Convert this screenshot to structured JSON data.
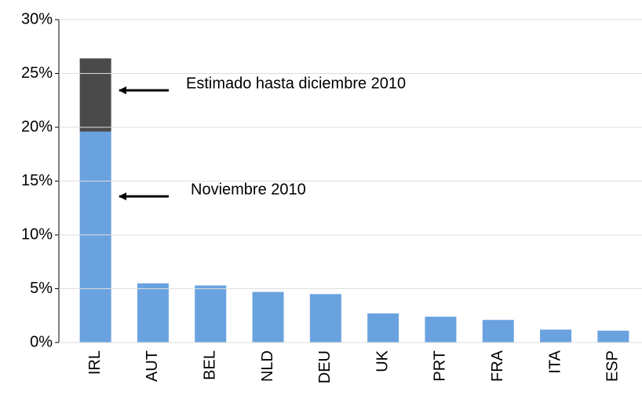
{
  "chart_data": {
    "type": "bar",
    "stacked": true,
    "categories": [
      "IRL",
      "AUT",
      "BEL",
      "NLD",
      "DEU",
      "UK",
      "PRT",
      "FRA",
      "ITA",
      "ESP"
    ],
    "series": [
      {
        "name": "Noviembre 2010",
        "color": "#6aa2e0",
        "values": [
          19.6,
          5.5,
          5.3,
          4.7,
          4.5,
          2.7,
          2.4,
          2.1,
          1.2,
          1.1
        ]
      },
      {
        "name": "Estimado hasta diciembre 2010",
        "color": "#4a4a4a",
        "values": [
          6.8,
          null,
          null,
          null,
          null,
          null,
          null,
          null,
          null,
          null
        ]
      }
    ],
    "ylim": [
      0,
      30
    ],
    "yticks": [
      {
        "value": 0,
        "label": "0%"
      },
      {
        "value": 5,
        "label": "5%"
      },
      {
        "value": 10,
        "label": "10%"
      },
      {
        "value": 15,
        "label": "15%"
      },
      {
        "value": 20,
        "label": "20%"
      },
      {
        "value": 25,
        "label": "25%"
      },
      {
        "value": 30,
        "label": "30%"
      }
    ],
    "grid": true
  }
}
